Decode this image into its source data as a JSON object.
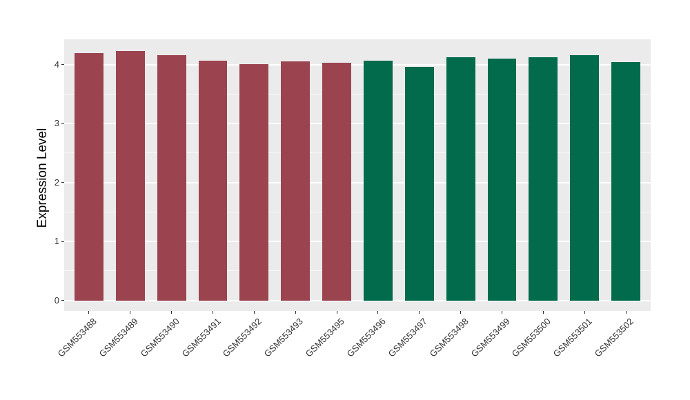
{
  "chart_data": {
    "type": "bar",
    "title": "",
    "xlabel": "",
    "ylabel": "Expression Level",
    "categories": [
      "GSM553488",
      "GSM553489",
      "GSM553490",
      "GSM553491",
      "GSM553492",
      "GSM553493",
      "GSM553495",
      "GSM553496",
      "GSM553497",
      "GSM553498",
      "GSM553499",
      "GSM553500",
      "GSM553501",
      "GSM553502"
    ],
    "values": [
      4.2,
      4.23,
      4.16,
      4.07,
      4.01,
      4.06,
      4.03,
      4.07,
      3.96,
      4.13,
      4.1,
      4.12,
      4.16,
      4.04
    ],
    "groups": [
      "A",
      "A",
      "A",
      "A",
      "A",
      "A",
      "A",
      "B",
      "B",
      "B",
      "B",
      "B",
      "B",
      "B"
    ],
    "group_colors": {
      "A": "#9B4450",
      "B": "#026B4B"
    },
    "y_ticks": [
      0,
      1,
      2,
      3,
      4
    ],
    "y_minor_ticks": [
      0.5,
      1.5,
      2.5,
      3.5
    ],
    "ylim": [
      -0.18,
      4.43
    ],
    "legend_position": "none",
    "grid": "on",
    "plot_background": "#EBEBEB",
    "gridline_color": "#FFFFFF",
    "tick_color": "#333333",
    "tick_label_color": "#333333",
    "axis_title_color": "#000000"
  }
}
